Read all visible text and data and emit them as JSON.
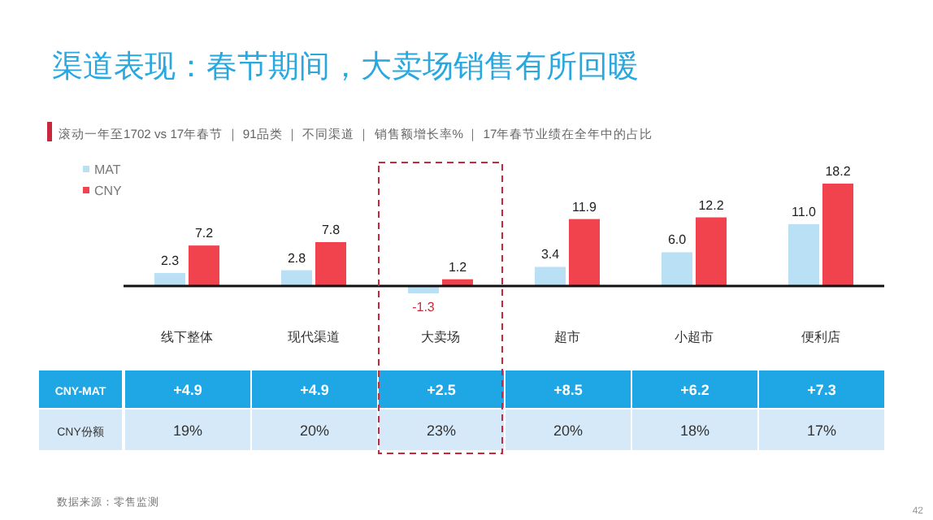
{
  "chart_data": {
    "type": "bar",
    "title": "渠道表现：春节期间，大卖场销售有所回暖",
    "subtitle": "滚动一年至1702 vs 17年春节 ｜ 91品类 ｜ 不同渠道 ｜ 销售额增长率% ｜ 17年春节业绩在全年中的占比",
    "categories": [
      "线下整体",
      "现代渠道",
      "大卖场",
      "超市",
      "小超市",
      "便利店"
    ],
    "series": [
      {
        "name": "MAT",
        "color": "#b9e0f5",
        "values": [
          2.3,
          2.8,
          -1.3,
          3.4,
          6.0,
          11.0
        ],
        "value_labels": [
          "2.3",
          "2.8",
          "-1.3",
          "3.4",
          "6.0",
          "11.0"
        ]
      },
      {
        "name": "CNY",
        "color": "#f0434e",
        "values": [
          7.2,
          7.8,
          1.2,
          11.9,
          12.2,
          18.2
        ],
        "value_labels": [
          "7.2",
          "7.8",
          "1.2",
          "11.9",
          "12.2",
          "18.2"
        ]
      }
    ],
    "legend": "top left",
    "annotations": [
      "CNY-MAT",
      "+4.9",
      "+4.9",
      "+2.5",
      "+8.5",
      "+6.2",
      "+7.3",
      "CNY份额",
      "19%",
      "20%",
      "23%",
      "20%",
      "18%",
      "17%",
      "数据来源：零售监测",
      "42"
    ]
  }
}
